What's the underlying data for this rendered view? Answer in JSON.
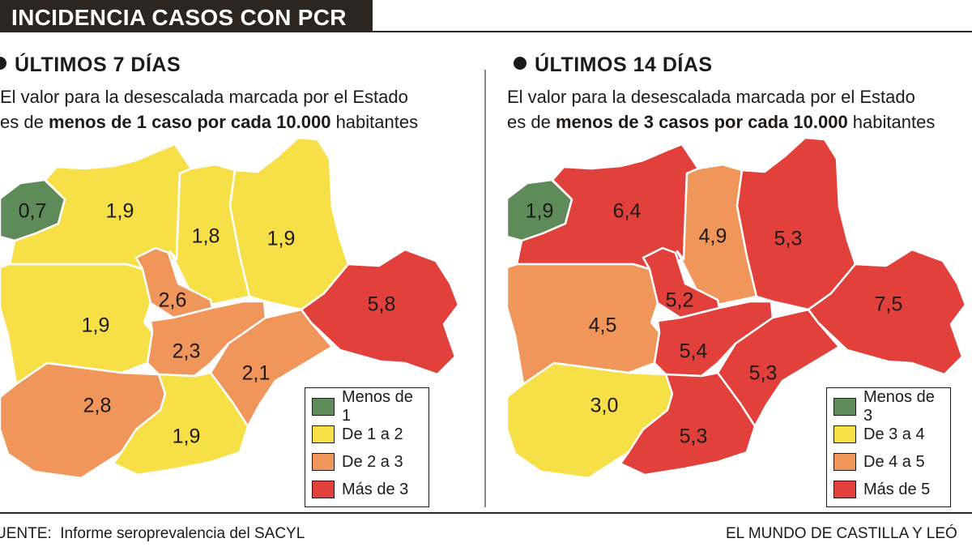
{
  "header": {
    "title": "INCIDENCIA CASOS CON PCR"
  },
  "colors": {
    "green": "#5f8a5a",
    "yellow": "#f7df48",
    "orange": "#f0965a",
    "red": "#e2403b"
  },
  "panels": [
    {
      "heading": "ÚLTIMOS 7 DÍAS",
      "subtitle_line1": "El valor para la desescalada marcada por el Estado",
      "subtitle_pre": "es de ",
      "subtitle_bold": "menos de 1 caso por cada 10.000",
      "subtitle_post": " habitantes",
      "legend": [
        "Menos de 1",
        "De 1 a 2",
        "De 2 a 3",
        "Más de 3"
      ]
    },
    {
      "heading": "ÚLTIMOS 14 DÍAS",
      "subtitle_line1": "El valor para la desescalada marcada por el Estado",
      "subtitle_pre": "es de ",
      "subtitle_bold": "menos de 3 casos por cada 10.000",
      "subtitle_post": " habitantes",
      "legend": [
        "Menos de 3",
        "De 3 a 4",
        "De 4 a 5",
        "Más de 5"
      ]
    }
  ],
  "chart_data": [
    {
      "type": "choropleth",
      "title": "Últimos 7 días",
      "categories": [
        "Menos de 1",
        "De 1 a 2",
        "De 2 a 3",
        "Más de 3"
      ],
      "regions": [
        {
          "label": "0,7",
          "value": 0.7,
          "class": "Menos de 1"
        },
        {
          "label": "1,9",
          "value": 1.9,
          "class": "De 1 a 2"
        },
        {
          "label": "1,8",
          "value": 1.8,
          "class": "De 1 a 2"
        },
        {
          "label": "1,9",
          "value": 1.9,
          "class": "De 1 a 2"
        },
        {
          "label": "1,9",
          "value": 1.9,
          "class": "De 1 a 2"
        },
        {
          "label": "2,6",
          "value": 2.6,
          "class": "De 2 a 3"
        },
        {
          "label": "2,3",
          "value": 2.3,
          "class": "De 2 a 3"
        },
        {
          "label": "2,1",
          "value": 2.1,
          "class": "De 2 a 3"
        },
        {
          "label": "5,8",
          "value": 5.8,
          "class": "Más de 3"
        },
        {
          "label": "2,8",
          "value": 2.8,
          "class": "De 2 a 3"
        },
        {
          "label": "1,9",
          "value": 1.9,
          "class": "De 1 a 2"
        }
      ]
    },
    {
      "type": "choropleth",
      "title": "Últimos 14 días",
      "categories": [
        "Menos de 3",
        "De 3 a 4",
        "De 4 a 5",
        "Más de 5"
      ],
      "regions": [
        {
          "label": "1,9",
          "value": 1.9,
          "class": "Menos de 3"
        },
        {
          "label": "6,4",
          "value": 6.4,
          "class": "Más de 5"
        },
        {
          "label": "4,9",
          "value": 4.9,
          "class": "De 4 a 5"
        },
        {
          "label": "5,3",
          "value": 5.3,
          "class": "Más de 5"
        },
        {
          "label": "4,5",
          "value": 4.5,
          "class": "De 4 a 5"
        },
        {
          "label": "5,2",
          "value": 5.2,
          "class": "Más de 5"
        },
        {
          "label": "5,4",
          "value": 5.4,
          "class": "Más de 5"
        },
        {
          "label": "5,3",
          "value": 5.3,
          "class": "Más de 5"
        },
        {
          "label": "7,5",
          "value": 7.5,
          "class": "Más de 5"
        },
        {
          "label": "3,0",
          "value": 3.0,
          "class": "De 3 a 4"
        },
        {
          "label": "5,3",
          "value": 5.3,
          "class": "Más de 5"
        }
      ]
    }
  ],
  "footer": {
    "source_label": "UENTE:",
    "source_text": "Informe seroprevalencia del SACYL",
    "credit": "EL MUNDO DE CASTILLA Y LEÓ"
  }
}
